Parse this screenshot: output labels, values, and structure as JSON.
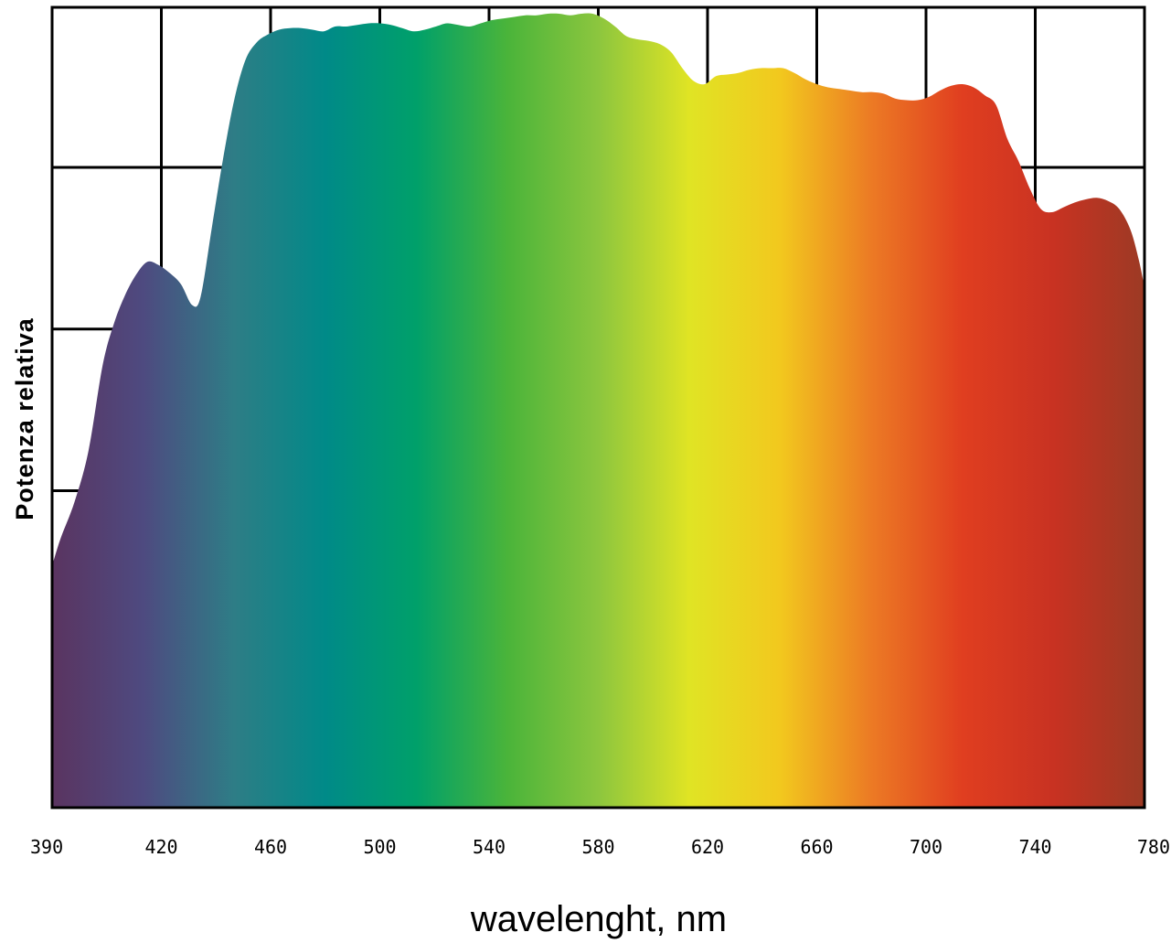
{
  "chart_data": {
    "type": "area",
    "title": "",
    "xlabel": "wavelenght, nm",
    "ylabel": "Potenza relativa",
    "xlim": [
      390,
      780
    ],
    "ylim": [
      0,
      5
    ],
    "grid": true,
    "x_ticks": [
      "390",
      "420",
      "460",
      "500",
      "540",
      "580",
      "620",
      "660",
      "700",
      "740",
      "780"
    ],
    "y_grid_values": [
      1.98,
      2.99,
      4.0
    ],
    "x_grid_values": [
      429,
      468,
      507,
      546,
      585,
      624,
      663,
      702,
      741
    ],
    "colors": {
      "gradient": [
        "#5a3460",
        "#4e4a80",
        "#2e7d86",
        "#008a88",
        "#00a06a",
        "#4ab43a",
        "#8cc63e",
        "#e0e424",
        "#f2c81e",
        "#ec7a24",
        "#e03e20",
        "#c83222",
        "#9c3a24"
      ],
      "frame": "#000000"
    },
    "series": [
      {
        "x": [
          390,
          393,
          398,
          403,
          408,
          412,
          416,
          420,
          424,
          428,
          432,
          436,
          440,
          443,
          447,
          451,
          455,
          459,
          463,
          467,
          471,
          475,
          479,
          483,
          487,
          491,
          495,
          499,
          503,
          507,
          511,
          515,
          519,
          523,
          527,
          531,
          535,
          539,
          543,
          547,
          551,
          555,
          559,
          563,
          567,
          571,
          575,
          579,
          583,
          587,
          591,
          595,
          599,
          603,
          607,
          611,
          615,
          619,
          623,
          627,
          631,
          635,
          639,
          643,
          647,
          651,
          655,
          659,
          663,
          667,
          671,
          675,
          679,
          683,
          687,
          691,
          695,
          699,
          703,
          707,
          711,
          715,
          719,
          723,
          727,
          731,
          735,
          739,
          743,
          747,
          751,
          755,
          759,
          763,
          767,
          771,
          775,
          778,
          780
        ],
        "y": [
          1.51,
          1.68,
          1.91,
          2.23,
          2.76,
          3.02,
          3.2,
          3.33,
          3.41,
          3.39,
          3.34,
          3.27,
          3.14,
          3.19,
          3.62,
          4.05,
          4.42,
          4.67,
          4.78,
          4.83,
          4.86,
          4.87,
          4.87,
          4.86,
          4.85,
          4.88,
          4.88,
          4.89,
          4.9,
          4.9,
          4.89,
          4.87,
          4.85,
          4.86,
          4.88,
          4.9,
          4.89,
          4.88,
          4.9,
          4.92,
          4.93,
          4.94,
          4.95,
          4.95,
          4.96,
          4.96,
          4.95,
          4.96,
          4.96,
          4.93,
          4.88,
          4.82,
          4.8,
          4.79,
          4.77,
          4.72,
          4.62,
          4.54,
          4.52,
          4.57,
          4.58,
          4.59,
          4.61,
          4.62,
          4.62,
          4.62,
          4.59,
          4.55,
          4.52,
          4.5,
          4.49,
          4.48,
          4.47,
          4.47,
          4.46,
          4.43,
          4.42,
          4.42,
          4.44,
          4.48,
          4.51,
          4.52,
          4.5,
          4.45,
          4.39,
          4.18,
          4.04,
          3.87,
          3.74,
          3.72,
          3.75,
          3.78,
          3.8,
          3.81,
          3.79,
          3.74,
          3.61,
          3.42,
          3.25
        ]
      }
    ]
  }
}
